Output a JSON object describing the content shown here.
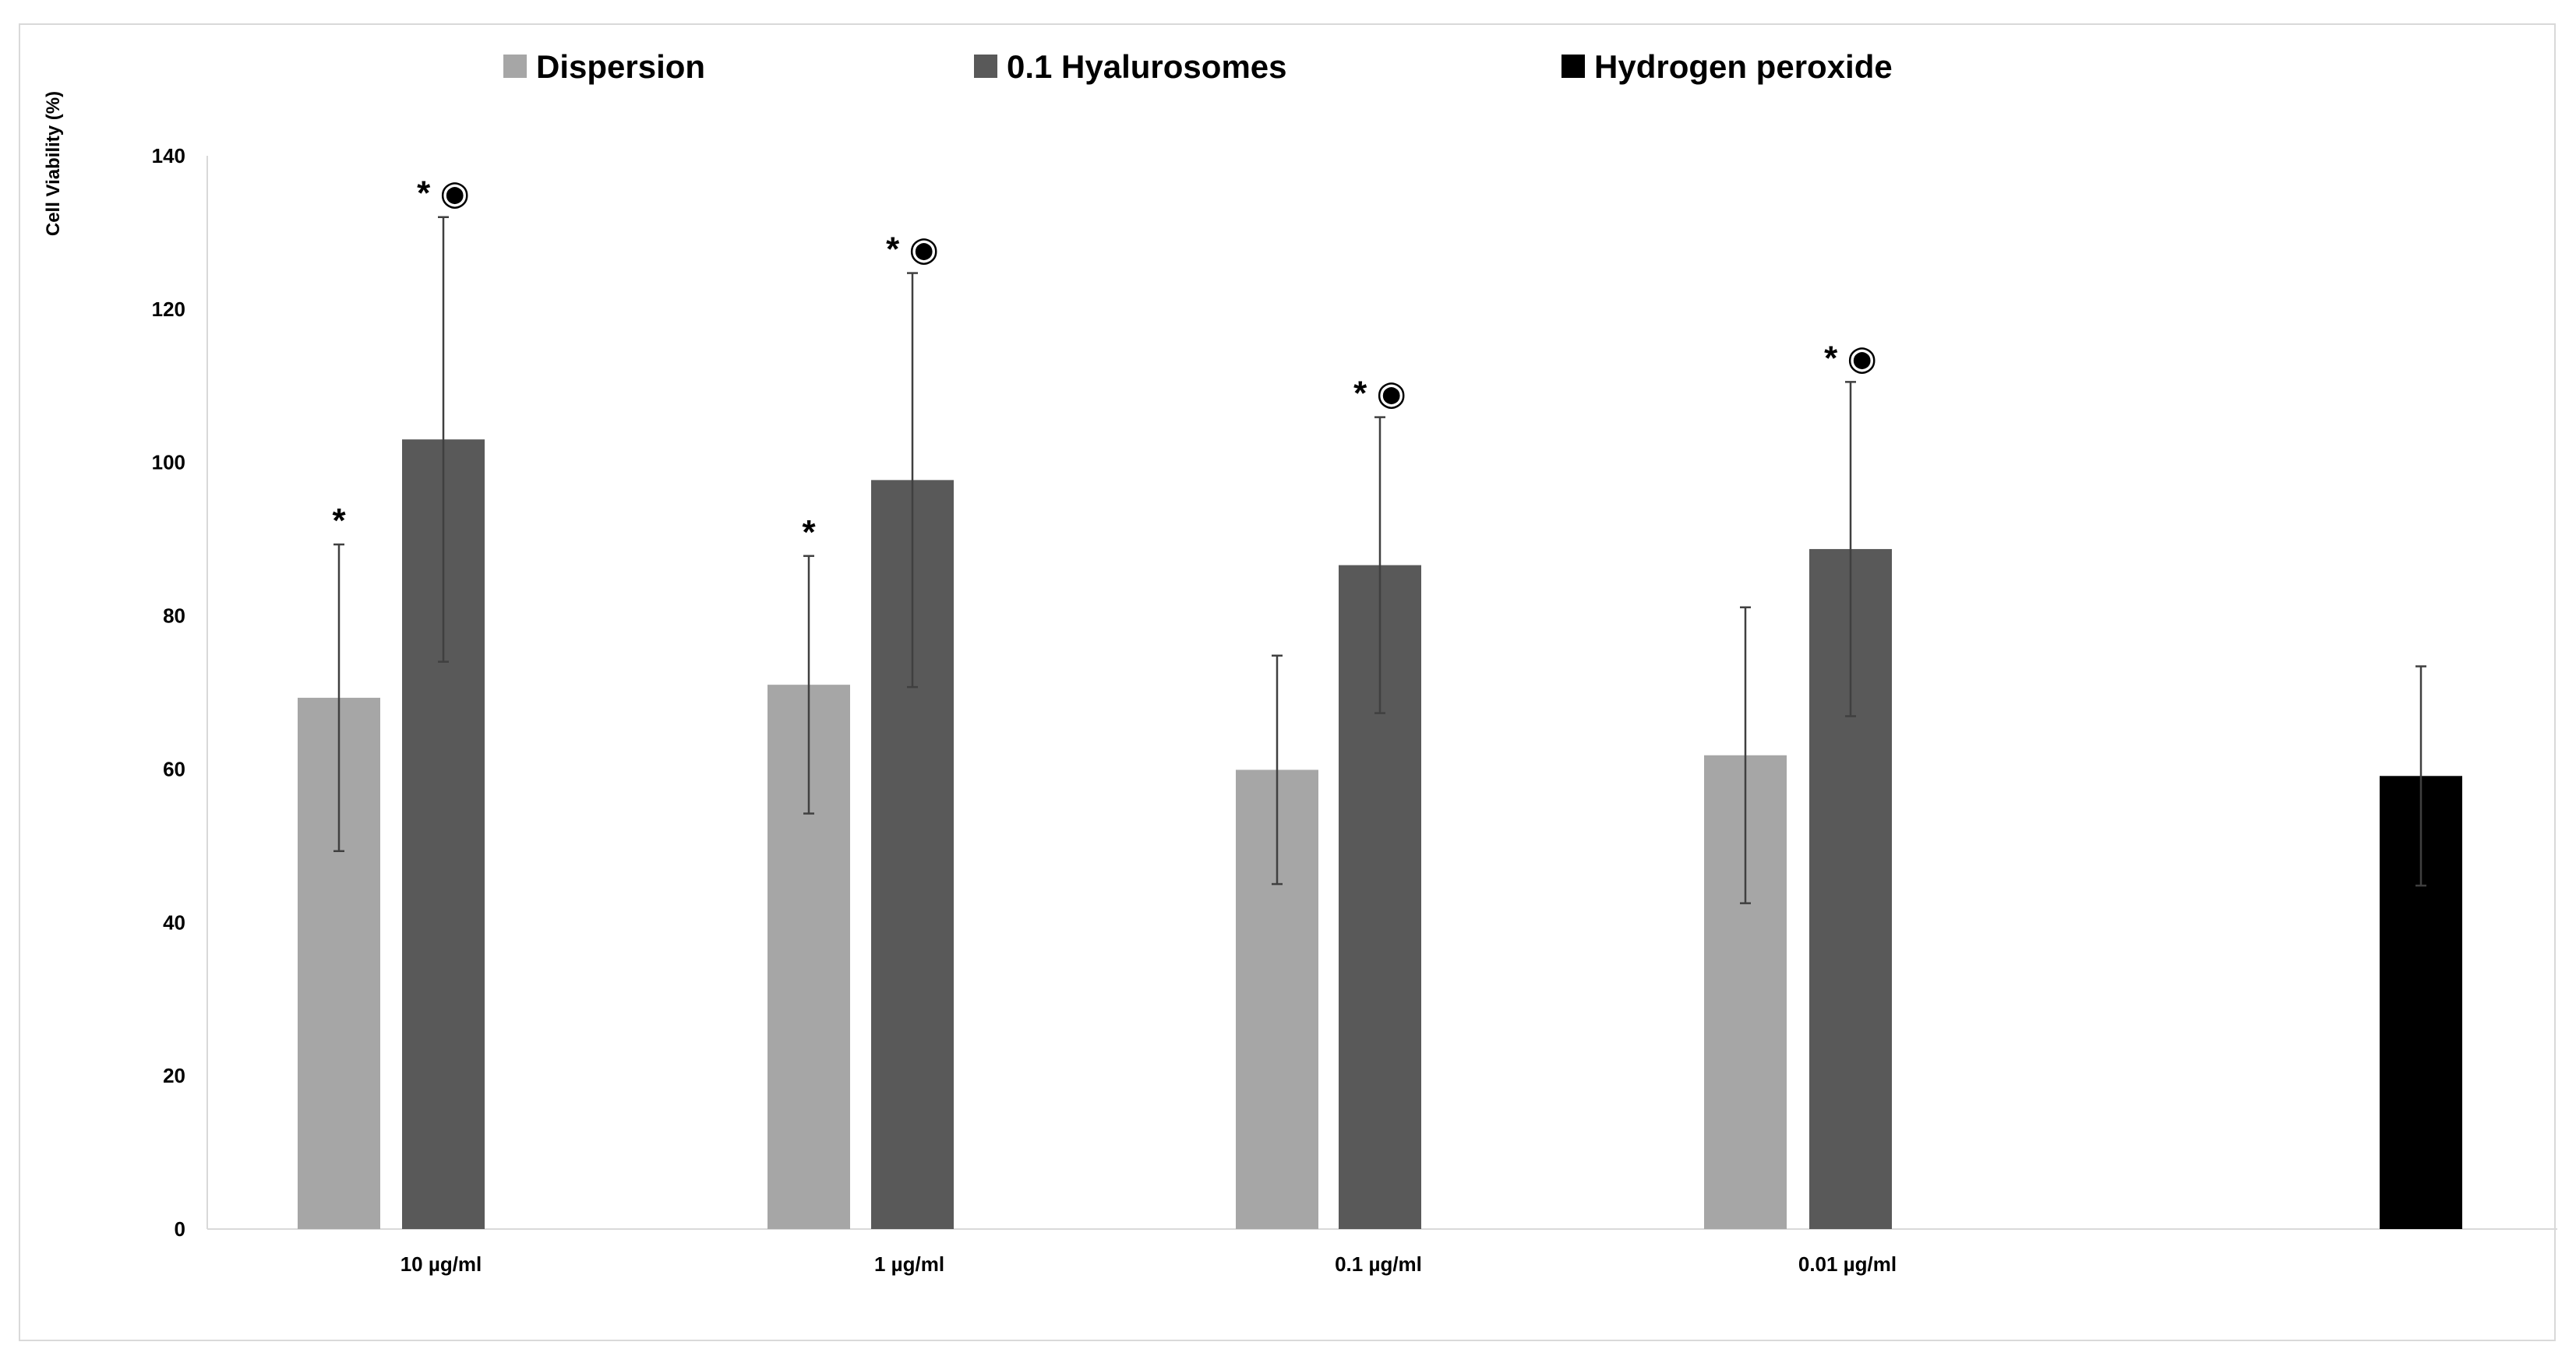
{
  "chart_data": {
    "type": "bar",
    "title": "",
    "xlabel": "",
    "ylabel": "Cell Viability (%)",
    "ylim": [
      0,
      140
    ],
    "yticks": [
      0,
      20,
      40,
      60,
      80,
      100,
      120,
      140
    ],
    "grid": false,
    "legend_position": "top",
    "categories": [
      "10 µg/ml",
      "1 µg/ml",
      "0.1 µg/ml",
      "0.01 µg/ml",
      ""
    ],
    "series": [
      {
        "name": "Dispersion",
        "color": "#a6a6a6",
        "values": [
          69.3,
          71.0,
          59.9,
          61.8,
          null
        ],
        "errors": [
          20.0,
          16.8,
          14.9,
          19.3,
          null
        ],
        "annotations": [
          "*",
          "*",
          "",
          "",
          ""
        ]
      },
      {
        "name": "0.1 Hyalurosomes",
        "color": "#595959",
        "values": [
          103.0,
          97.7,
          86.6,
          88.7,
          null
        ],
        "errors": [
          29.0,
          27.0,
          19.3,
          21.8,
          null
        ],
        "annotations": [
          "* ◉",
          "* ◉",
          "* ◉",
          "* ◉",
          ""
        ]
      },
      {
        "name": "Hydrogen peroxide",
        "color": "#000000",
        "values": [
          null,
          null,
          null,
          null,
          59.1
        ],
        "errors": [
          null,
          null,
          null,
          null,
          14.3
        ],
        "annotations": [
          "",
          "",
          "",
          "",
          ""
        ]
      }
    ]
  }
}
